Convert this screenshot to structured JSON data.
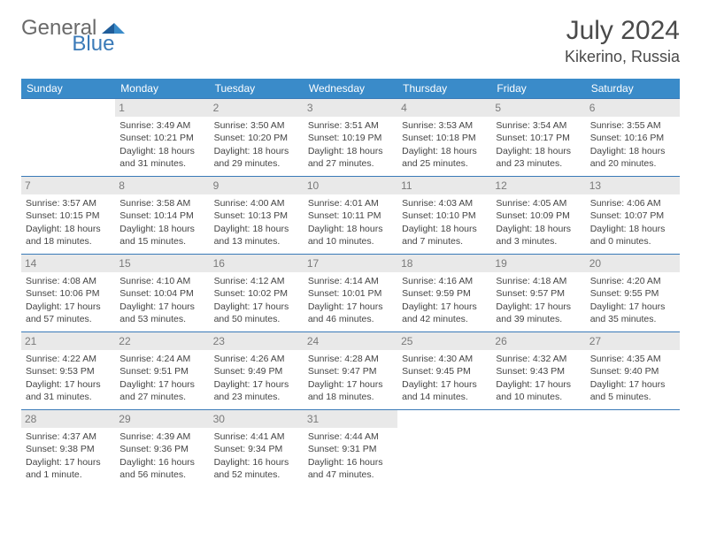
{
  "brand": {
    "part1": "General",
    "part2": "Blue"
  },
  "title": "July 2024",
  "location": "Kikerino, Russia",
  "colors": {
    "header_bg": "#3a8bc9",
    "header_text": "#ffffff",
    "cell_border": "#3a7ab8",
    "daynum_bg": "#e9e9e9",
    "daynum_text": "#7a7a7a",
    "body_text": "#444444",
    "brand_gray": "#6a6a6a",
    "brand_blue": "#3a7ab8"
  },
  "daysOfWeek": [
    "Sunday",
    "Monday",
    "Tuesday",
    "Wednesday",
    "Thursday",
    "Friday",
    "Saturday"
  ],
  "weeks": [
    [
      {
        "n": "",
        "sr": "",
        "ss": "",
        "d1": "",
        "d2": ""
      },
      {
        "n": "1",
        "sr": "Sunrise: 3:49 AM",
        "ss": "Sunset: 10:21 PM",
        "d1": "Daylight: 18 hours",
        "d2": "and 31 minutes."
      },
      {
        "n": "2",
        "sr": "Sunrise: 3:50 AM",
        "ss": "Sunset: 10:20 PM",
        "d1": "Daylight: 18 hours",
        "d2": "and 29 minutes."
      },
      {
        "n": "3",
        "sr": "Sunrise: 3:51 AM",
        "ss": "Sunset: 10:19 PM",
        "d1": "Daylight: 18 hours",
        "d2": "and 27 minutes."
      },
      {
        "n": "4",
        "sr": "Sunrise: 3:53 AM",
        "ss": "Sunset: 10:18 PM",
        "d1": "Daylight: 18 hours",
        "d2": "and 25 minutes."
      },
      {
        "n": "5",
        "sr": "Sunrise: 3:54 AM",
        "ss": "Sunset: 10:17 PM",
        "d1": "Daylight: 18 hours",
        "d2": "and 23 minutes."
      },
      {
        "n": "6",
        "sr": "Sunrise: 3:55 AM",
        "ss": "Sunset: 10:16 PM",
        "d1": "Daylight: 18 hours",
        "d2": "and 20 minutes."
      }
    ],
    [
      {
        "n": "7",
        "sr": "Sunrise: 3:57 AM",
        "ss": "Sunset: 10:15 PM",
        "d1": "Daylight: 18 hours",
        "d2": "and 18 minutes."
      },
      {
        "n": "8",
        "sr": "Sunrise: 3:58 AM",
        "ss": "Sunset: 10:14 PM",
        "d1": "Daylight: 18 hours",
        "d2": "and 15 minutes."
      },
      {
        "n": "9",
        "sr": "Sunrise: 4:00 AM",
        "ss": "Sunset: 10:13 PM",
        "d1": "Daylight: 18 hours",
        "d2": "and 13 minutes."
      },
      {
        "n": "10",
        "sr": "Sunrise: 4:01 AM",
        "ss": "Sunset: 10:11 PM",
        "d1": "Daylight: 18 hours",
        "d2": "and 10 minutes."
      },
      {
        "n": "11",
        "sr": "Sunrise: 4:03 AM",
        "ss": "Sunset: 10:10 PM",
        "d1": "Daylight: 18 hours",
        "d2": "and 7 minutes."
      },
      {
        "n": "12",
        "sr": "Sunrise: 4:05 AM",
        "ss": "Sunset: 10:09 PM",
        "d1": "Daylight: 18 hours",
        "d2": "and 3 minutes."
      },
      {
        "n": "13",
        "sr": "Sunrise: 4:06 AM",
        "ss": "Sunset: 10:07 PM",
        "d1": "Daylight: 18 hours",
        "d2": "and 0 minutes."
      }
    ],
    [
      {
        "n": "14",
        "sr": "Sunrise: 4:08 AM",
        "ss": "Sunset: 10:06 PM",
        "d1": "Daylight: 17 hours",
        "d2": "and 57 minutes."
      },
      {
        "n": "15",
        "sr": "Sunrise: 4:10 AM",
        "ss": "Sunset: 10:04 PM",
        "d1": "Daylight: 17 hours",
        "d2": "and 53 minutes."
      },
      {
        "n": "16",
        "sr": "Sunrise: 4:12 AM",
        "ss": "Sunset: 10:02 PM",
        "d1": "Daylight: 17 hours",
        "d2": "and 50 minutes."
      },
      {
        "n": "17",
        "sr": "Sunrise: 4:14 AM",
        "ss": "Sunset: 10:01 PM",
        "d1": "Daylight: 17 hours",
        "d2": "and 46 minutes."
      },
      {
        "n": "18",
        "sr": "Sunrise: 4:16 AM",
        "ss": "Sunset: 9:59 PM",
        "d1": "Daylight: 17 hours",
        "d2": "and 42 minutes."
      },
      {
        "n": "19",
        "sr": "Sunrise: 4:18 AM",
        "ss": "Sunset: 9:57 PM",
        "d1": "Daylight: 17 hours",
        "d2": "and 39 minutes."
      },
      {
        "n": "20",
        "sr": "Sunrise: 4:20 AM",
        "ss": "Sunset: 9:55 PM",
        "d1": "Daylight: 17 hours",
        "d2": "and 35 minutes."
      }
    ],
    [
      {
        "n": "21",
        "sr": "Sunrise: 4:22 AM",
        "ss": "Sunset: 9:53 PM",
        "d1": "Daylight: 17 hours",
        "d2": "and 31 minutes."
      },
      {
        "n": "22",
        "sr": "Sunrise: 4:24 AM",
        "ss": "Sunset: 9:51 PM",
        "d1": "Daylight: 17 hours",
        "d2": "and 27 minutes."
      },
      {
        "n": "23",
        "sr": "Sunrise: 4:26 AM",
        "ss": "Sunset: 9:49 PM",
        "d1": "Daylight: 17 hours",
        "d2": "and 23 minutes."
      },
      {
        "n": "24",
        "sr": "Sunrise: 4:28 AM",
        "ss": "Sunset: 9:47 PM",
        "d1": "Daylight: 17 hours",
        "d2": "and 18 minutes."
      },
      {
        "n": "25",
        "sr": "Sunrise: 4:30 AM",
        "ss": "Sunset: 9:45 PM",
        "d1": "Daylight: 17 hours",
        "d2": "and 14 minutes."
      },
      {
        "n": "26",
        "sr": "Sunrise: 4:32 AM",
        "ss": "Sunset: 9:43 PM",
        "d1": "Daylight: 17 hours",
        "d2": "and 10 minutes."
      },
      {
        "n": "27",
        "sr": "Sunrise: 4:35 AM",
        "ss": "Sunset: 9:40 PM",
        "d1": "Daylight: 17 hours",
        "d2": "and 5 minutes."
      }
    ],
    [
      {
        "n": "28",
        "sr": "Sunrise: 4:37 AM",
        "ss": "Sunset: 9:38 PM",
        "d1": "Daylight: 17 hours",
        "d2": "and 1 minute."
      },
      {
        "n": "29",
        "sr": "Sunrise: 4:39 AM",
        "ss": "Sunset: 9:36 PM",
        "d1": "Daylight: 16 hours",
        "d2": "and 56 minutes."
      },
      {
        "n": "30",
        "sr": "Sunrise: 4:41 AM",
        "ss": "Sunset: 9:34 PM",
        "d1": "Daylight: 16 hours",
        "d2": "and 52 minutes."
      },
      {
        "n": "31",
        "sr": "Sunrise: 4:44 AM",
        "ss": "Sunset: 9:31 PM",
        "d1": "Daylight: 16 hours",
        "d2": "and 47 minutes."
      },
      {
        "n": "",
        "sr": "",
        "ss": "",
        "d1": "",
        "d2": ""
      },
      {
        "n": "",
        "sr": "",
        "ss": "",
        "d1": "",
        "d2": ""
      },
      {
        "n": "",
        "sr": "",
        "ss": "",
        "d1": "",
        "d2": ""
      }
    ]
  ]
}
